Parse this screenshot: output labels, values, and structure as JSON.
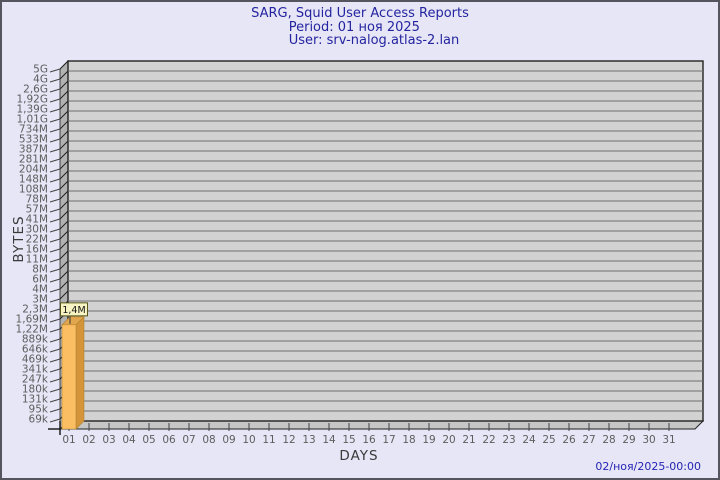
{
  "window": {
    "background": "#e6e6f6",
    "border_color": "#55555f"
  },
  "header": {
    "title": "SARG, Squid User Access Reports",
    "period": "Period: 01 ноя 2025",
    "user": "User: srv-nalog.atlas-2.lan",
    "text_color": "#2424a0"
  },
  "footer": {
    "timestamp": "02/ноя/2025-00:00",
    "text_color": "#2424b4"
  },
  "chart_data": {
    "type": "bar",
    "title": "SARG, Squid User Access Reports",
    "subtitle_lines": [
      "Period: 01 ноя 2025",
      "User: srv-nalog.atlas-2.lan"
    ],
    "xlabel": "DAYS",
    "ylabel": "BYTES",
    "y_scale": "log",
    "y_top_value": 5000000000,
    "y_bottom_tick_value": 69000,
    "y_tick_labels": [
      "5G",
      "4G",
      "2,6G",
      "1,92G",
      "1,39G",
      "1,01G",
      "734M",
      "533M",
      "387M",
      "281M",
      "204M",
      "148M",
      "108M",
      "78M",
      "57M",
      "41M",
      "30M",
      "22M",
      "16M",
      "11M",
      "8M",
      "6M",
      "4M",
      "3M",
      "2,3M",
      "1,69M",
      "1,22M",
      "889k",
      "646k",
      "469k",
      "341k",
      "247k",
      "180k",
      "131k",
      "95k",
      "69k"
    ],
    "categories": [
      "01",
      "02",
      "03",
      "04",
      "05",
      "06",
      "07",
      "08",
      "09",
      "10",
      "11",
      "12",
      "13",
      "14",
      "15",
      "16",
      "17",
      "18",
      "19",
      "20",
      "21",
      "22",
      "23",
      "24",
      "25",
      "26",
      "27",
      "28",
      "29",
      "30",
      "31"
    ],
    "series": [
      {
        "name": "bytes",
        "points": [
          {
            "category": "01",
            "value": 1400000,
            "label": "1,4M"
          }
        ]
      }
    ],
    "grid": true,
    "legend": "none",
    "colors": {
      "bar_front": "#fcbe63",
      "bar_side": "#d4943a",
      "bar_top": "#e2a74e",
      "bar_outline": "#b5852e",
      "plot_face": "#d2d2d2",
      "plot_wall": "#b2b2b2",
      "plot_floor": "#c6c6c6",
      "grid_line": "#6f6f6f",
      "edge": "#222222",
      "tick_text": "#5e5e5e",
      "annotation_bg": "#f7f3c3",
      "annotation_border": "#55551a",
      "annotation_text": "#141414"
    }
  }
}
